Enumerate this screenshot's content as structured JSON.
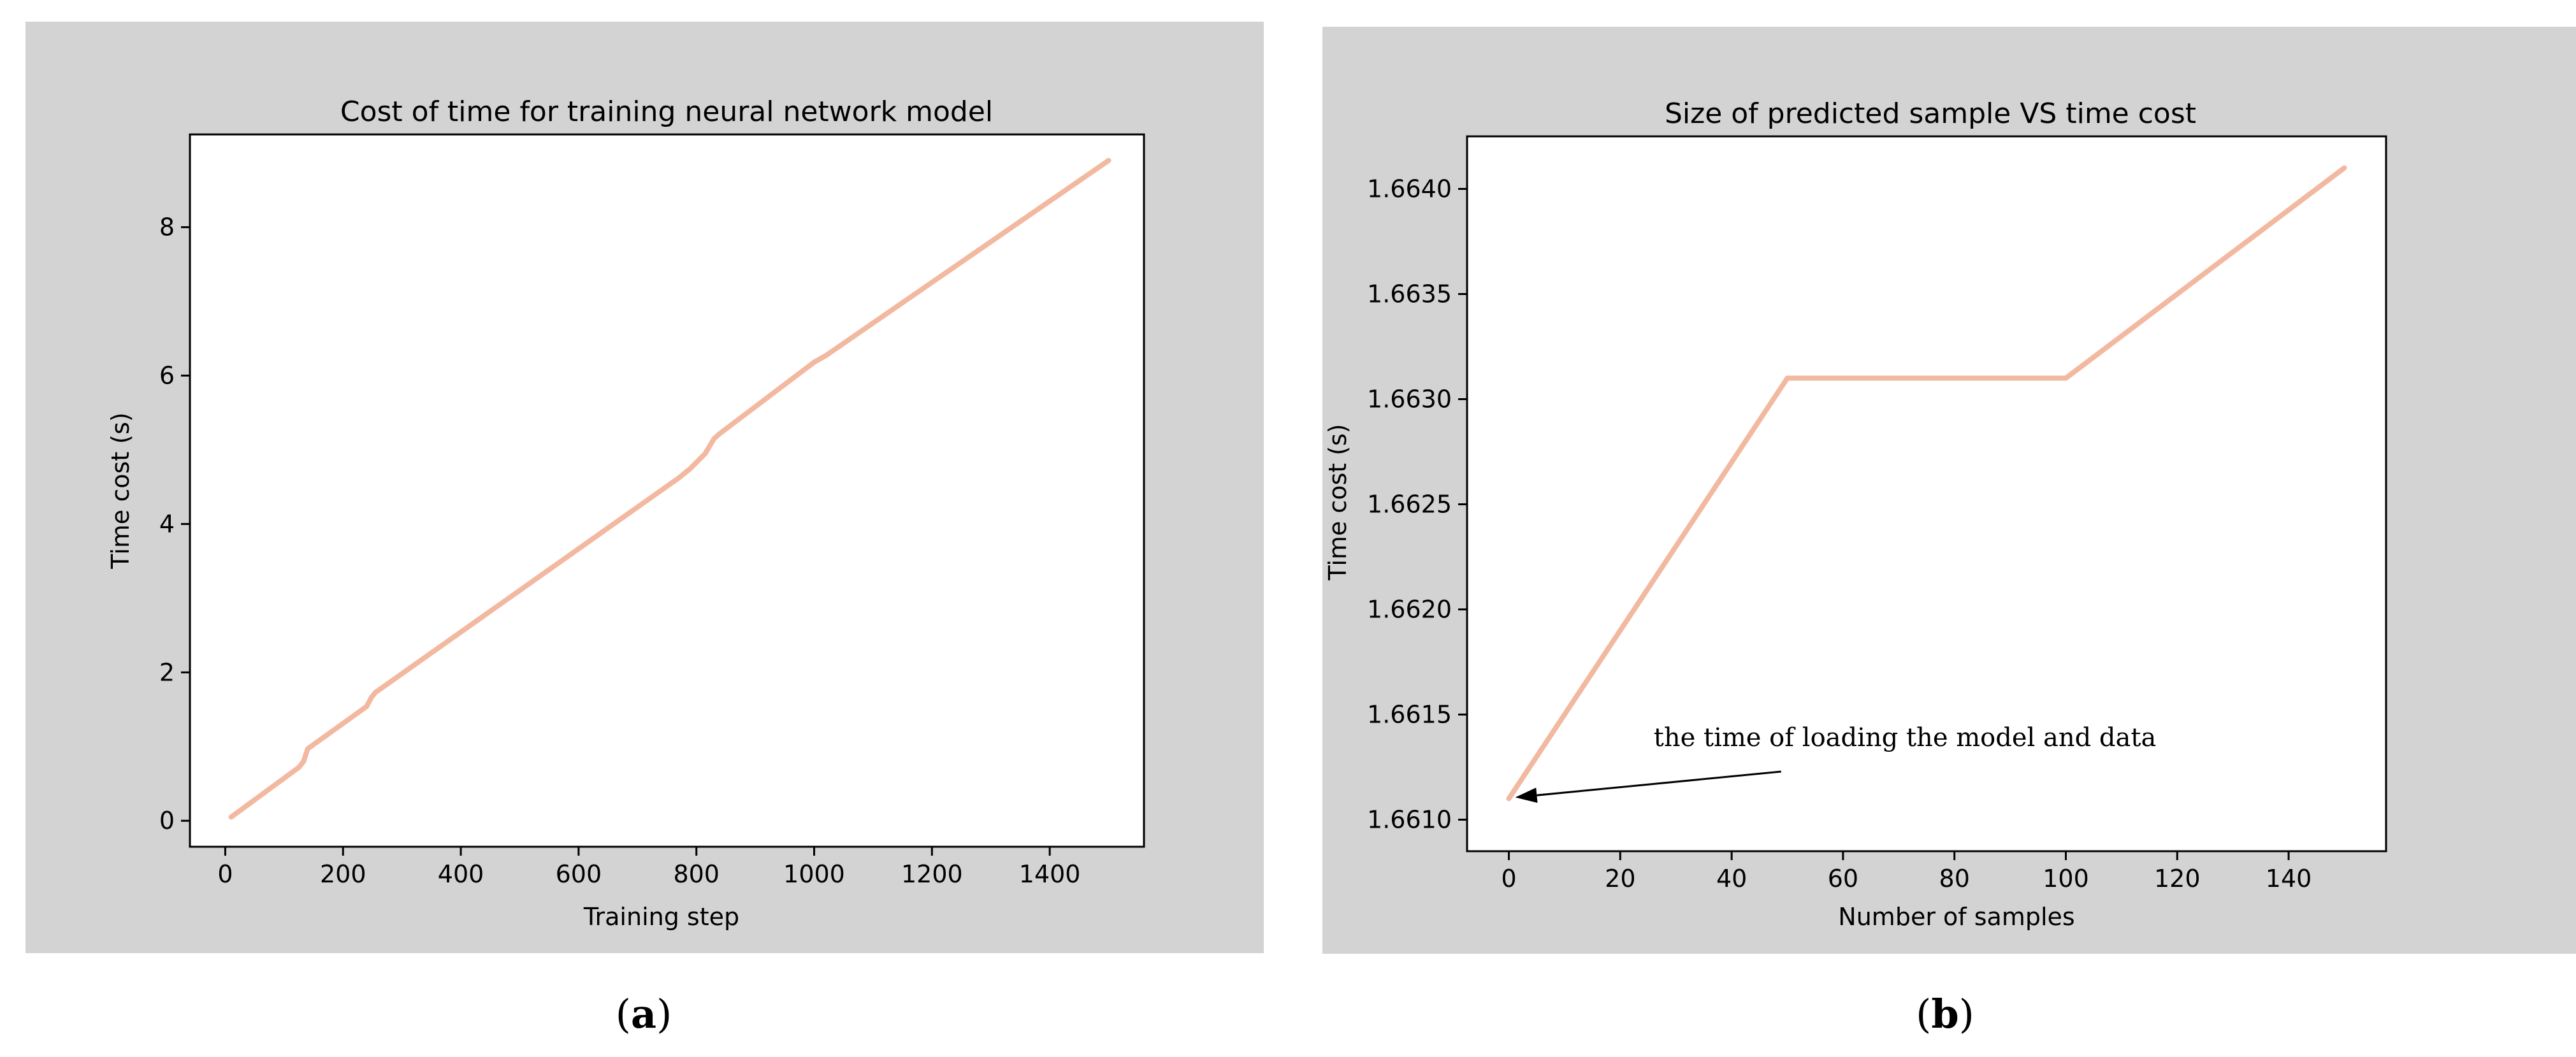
{
  "chart_data": [
    {
      "type": "line",
      "title": "Cost of time for training neural network model",
      "xlabel": "Training step",
      "ylabel": "Time cost (s)",
      "xlim": [
        -60,
        1560
      ],
      "ylim": [
        -0.35,
        9.25
      ],
      "xticks": [
        0,
        200,
        400,
        600,
        800,
        1000,
        1200,
        1400
      ],
      "yticks": [
        0,
        2,
        4,
        6,
        8
      ],
      "xtick_labels": [
        "0",
        "200",
        "400",
        "600",
        "800",
        "1000",
        "1200",
        "1400"
      ],
      "ytick_labels": [
        "0",
        "2",
        "4",
        "6",
        "8"
      ],
      "color": "#f2b8a0",
      "grid": false,
      "series": [
        {
          "x": [
            10,
            125,
            133,
            140,
            240,
            248,
            255,
            770,
            790,
            815,
            830,
            840,
            1000,
            1020,
            1500
          ],
          "y": [
            0.05,
            0.72,
            0.8,
            0.97,
            1.54,
            1.66,
            1.73,
            4.62,
            4.75,
            4.95,
            5.15,
            5.22,
            6.18,
            6.27,
            8.9
          ]
        }
      ],
      "caption_letter": "a"
    },
    {
      "type": "line",
      "title": "Size of predicted sample VS time cost",
      "xlabel": "Number of samples",
      "ylabel": "Time cost (s)",
      "xlim": [
        -7.5,
        157.5
      ],
      "ylim": [
        1.66085,
        1.66425
      ],
      "xticks": [
        0,
        20,
        40,
        60,
        80,
        100,
        120,
        140
      ],
      "yticks": [
        1.661,
        1.6615,
        1.662,
        1.6625,
        1.663,
        1.6635,
        1.664
      ],
      "xtick_labels": [
        "0",
        "20",
        "40",
        "60",
        "80",
        "100",
        "120",
        "140"
      ],
      "ytick_labels": [
        "1.6610",
        "1.6615",
        "1.6620",
        "1.6625",
        "1.6630",
        "1.6635",
        "1.6640"
      ],
      "color": "#f2b8a0",
      "grid": false,
      "series": [
        {
          "x": [
            0,
            50,
            100,
            150
          ],
          "y": [
            1.6611,
            1.6631,
            1.6631,
            1.6641
          ]
        }
      ],
      "annotation": {
        "text": "the time of loading the model and data",
        "xy": [
          0,
          1.6611
        ],
        "xytext": [
          26,
          1.66135
        ]
      },
      "caption_letter": "b"
    }
  ]
}
